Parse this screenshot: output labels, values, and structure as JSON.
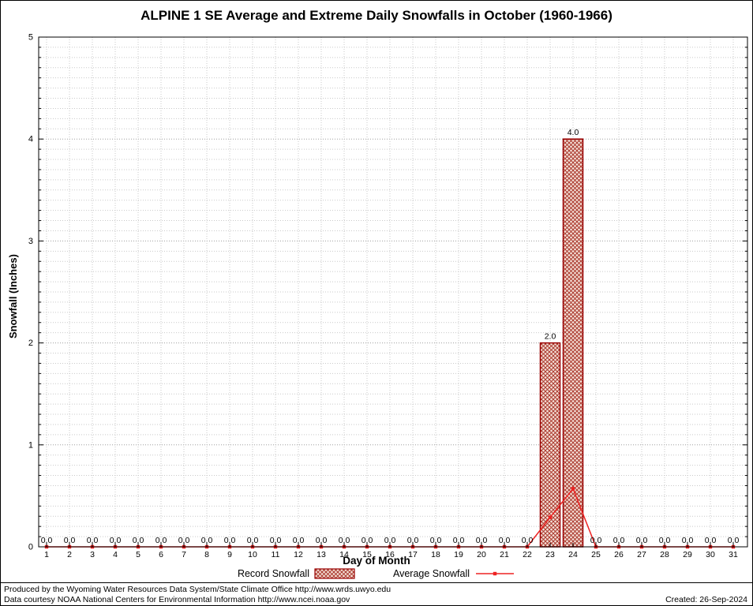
{
  "colors": {
    "bar_edge": "#990000",
    "bar_hatch": "#aa3a2e",
    "bar_fill": "#f6e2da",
    "line": "#ee2222",
    "grid_minor": "#c9c9c9",
    "grid_major": "#9f9f9f",
    "axis": "#000000"
  },
  "footer": {
    "line1": "Produced by the Wyoming Water Resources Data System/State Climate Office http://www.wrds.uwyo.edu",
    "line2": "Data courtesy NOAA National Centers for Environmental Information http://www.ncei.noaa.gov",
    "created": "Created: 26-Sep-2024"
  },
  "chart_data": {
    "type": "bar",
    "title": "ALPINE 1 SE Average and Extreme Daily Snowfalls in October (1960-1966)",
    "xlabel": "Day of Month",
    "ylabel": "Snowfall (Inches)",
    "ylim": [
      0,
      5
    ],
    "yticks": [
      0,
      1,
      2,
      3,
      4,
      5
    ],
    "grid": true,
    "legend_position": "bottom",
    "categories": [
      1,
      2,
      3,
      4,
      5,
      6,
      7,
      8,
      9,
      10,
      11,
      12,
      13,
      14,
      15,
      16,
      17,
      18,
      19,
      20,
      21,
      22,
      23,
      24,
      25,
      26,
      27,
      28,
      29,
      30,
      31
    ],
    "series": [
      {
        "name": "Record Snowfall",
        "type": "bar",
        "values": [
          0,
          0,
          0,
          0,
          0,
          0,
          0,
          0,
          0,
          0,
          0,
          0,
          0,
          0,
          0,
          0,
          0,
          0,
          0,
          0,
          0,
          0,
          2.0,
          4.0,
          0,
          0,
          0,
          0,
          0,
          0,
          0
        ]
      },
      {
        "name": "Average Snowfall",
        "type": "line",
        "values": [
          0,
          0,
          0,
          0,
          0,
          0,
          0,
          0,
          0,
          0,
          0,
          0,
          0,
          0,
          0,
          0,
          0,
          0,
          0,
          0,
          0,
          0,
          0.29,
          0.57,
          0,
          0,
          0,
          0,
          0,
          0,
          0
        ]
      }
    ],
    "value_label_format": "one_decimal"
  }
}
